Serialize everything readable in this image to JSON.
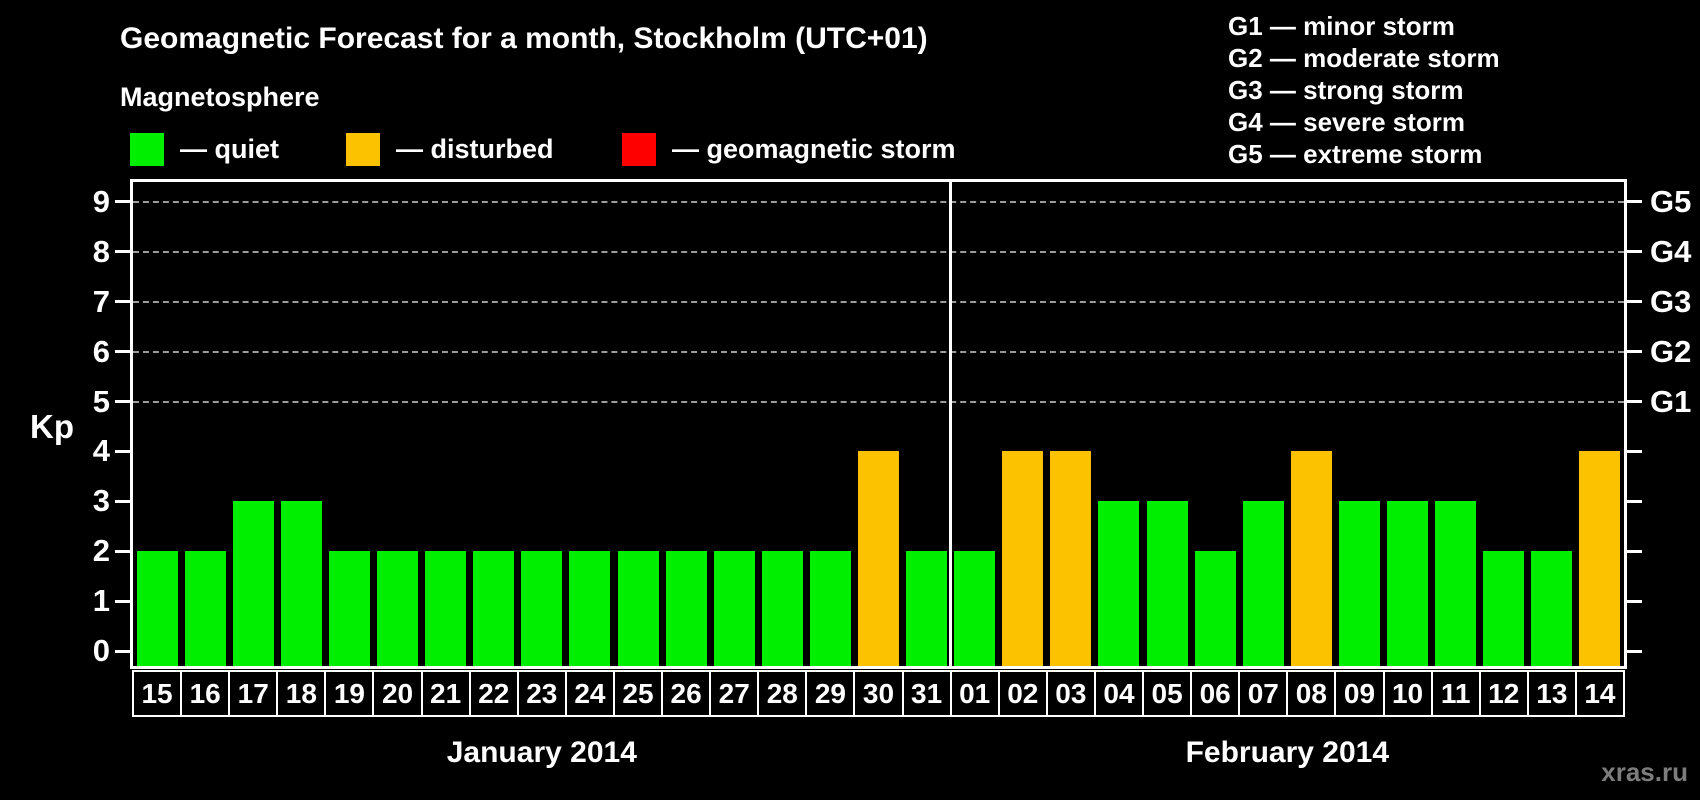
{
  "title": "Geomagnetic Forecast for a month, Stockholm (UTC+01)",
  "subtitle": "Magnetosphere",
  "legend": {
    "items": [
      {
        "key": "quiet",
        "label": "— quiet",
        "color": "#00ee00"
      },
      {
        "key": "disturbed",
        "label": "— disturbed",
        "color": "#fcc200"
      },
      {
        "key": "storm",
        "label": "— geomagnetic storm",
        "color": "#ff0000"
      }
    ]
  },
  "g_scale_legend": [
    "G1 — minor storm",
    "G2 — moderate storm",
    "G3 — strong storm",
    "G4 — severe storm",
    "G5 — extreme storm"
  ],
  "watermark": "xras.ru",
  "colors": {
    "background": "#000000",
    "axis": "#ffffff",
    "grid": "#9c9c9c",
    "watermark": "#7d7d7d"
  },
  "chart_data": {
    "type": "bar",
    "ylabel": "Kp",
    "y_ticks": [
      0,
      1,
      2,
      3,
      4,
      5,
      6,
      7,
      8,
      9
    ],
    "y_range": [
      0,
      9.4
    ],
    "grid": "dashed horizontal lines at Kp 5-9 (G1-G5 levels)",
    "right_axis_labels": [
      {
        "label": "G1",
        "kp": 5
      },
      {
        "label": "G2",
        "kp": 6
      },
      {
        "label": "G3",
        "kp": 7
      },
      {
        "label": "G4",
        "kp": 8
      },
      {
        "label": "G5",
        "kp": 9
      }
    ],
    "months": [
      {
        "label": "January 2014",
        "values": [
          {
            "day": "15",
            "kp": 2,
            "status": "quiet"
          },
          {
            "day": "16",
            "kp": 2,
            "status": "quiet"
          },
          {
            "day": "17",
            "kp": 3,
            "status": "quiet"
          },
          {
            "day": "18",
            "kp": 3,
            "status": "quiet"
          },
          {
            "day": "19",
            "kp": 2,
            "status": "quiet"
          },
          {
            "day": "20",
            "kp": 2,
            "status": "quiet"
          },
          {
            "day": "21",
            "kp": 2,
            "status": "quiet"
          },
          {
            "day": "22",
            "kp": 2,
            "status": "quiet"
          },
          {
            "day": "23",
            "kp": 2,
            "status": "quiet"
          },
          {
            "day": "24",
            "kp": 2,
            "status": "quiet"
          },
          {
            "day": "25",
            "kp": 2,
            "status": "quiet"
          },
          {
            "day": "26",
            "kp": 2,
            "status": "quiet"
          },
          {
            "day": "27",
            "kp": 2,
            "status": "quiet"
          },
          {
            "day": "28",
            "kp": 2,
            "status": "quiet"
          },
          {
            "day": "29",
            "kp": 2,
            "status": "quiet"
          },
          {
            "day": "30",
            "kp": 4,
            "status": "disturbed"
          },
          {
            "day": "31",
            "kp": 2,
            "status": "quiet"
          }
        ]
      },
      {
        "label": "February 2014",
        "values": [
          {
            "day": "01",
            "kp": 2,
            "status": "quiet"
          },
          {
            "day": "02",
            "kp": 4,
            "status": "disturbed"
          },
          {
            "day": "03",
            "kp": 4,
            "status": "disturbed"
          },
          {
            "day": "04",
            "kp": 3,
            "status": "quiet"
          },
          {
            "day": "05",
            "kp": 3,
            "status": "quiet"
          },
          {
            "day": "06",
            "kp": 2,
            "status": "quiet"
          },
          {
            "day": "07",
            "kp": 3,
            "status": "quiet"
          },
          {
            "day": "08",
            "kp": 4,
            "status": "disturbed"
          },
          {
            "day": "09",
            "kp": 3,
            "status": "quiet"
          },
          {
            "day": "10",
            "kp": 3,
            "status": "quiet"
          },
          {
            "day": "11",
            "kp": 3,
            "status": "quiet"
          },
          {
            "day": "12",
            "kp": 2,
            "status": "quiet"
          },
          {
            "day": "13",
            "kp": 2,
            "status": "quiet"
          },
          {
            "day": "14",
            "kp": 4,
            "status": "disturbed"
          }
        ]
      }
    ]
  }
}
